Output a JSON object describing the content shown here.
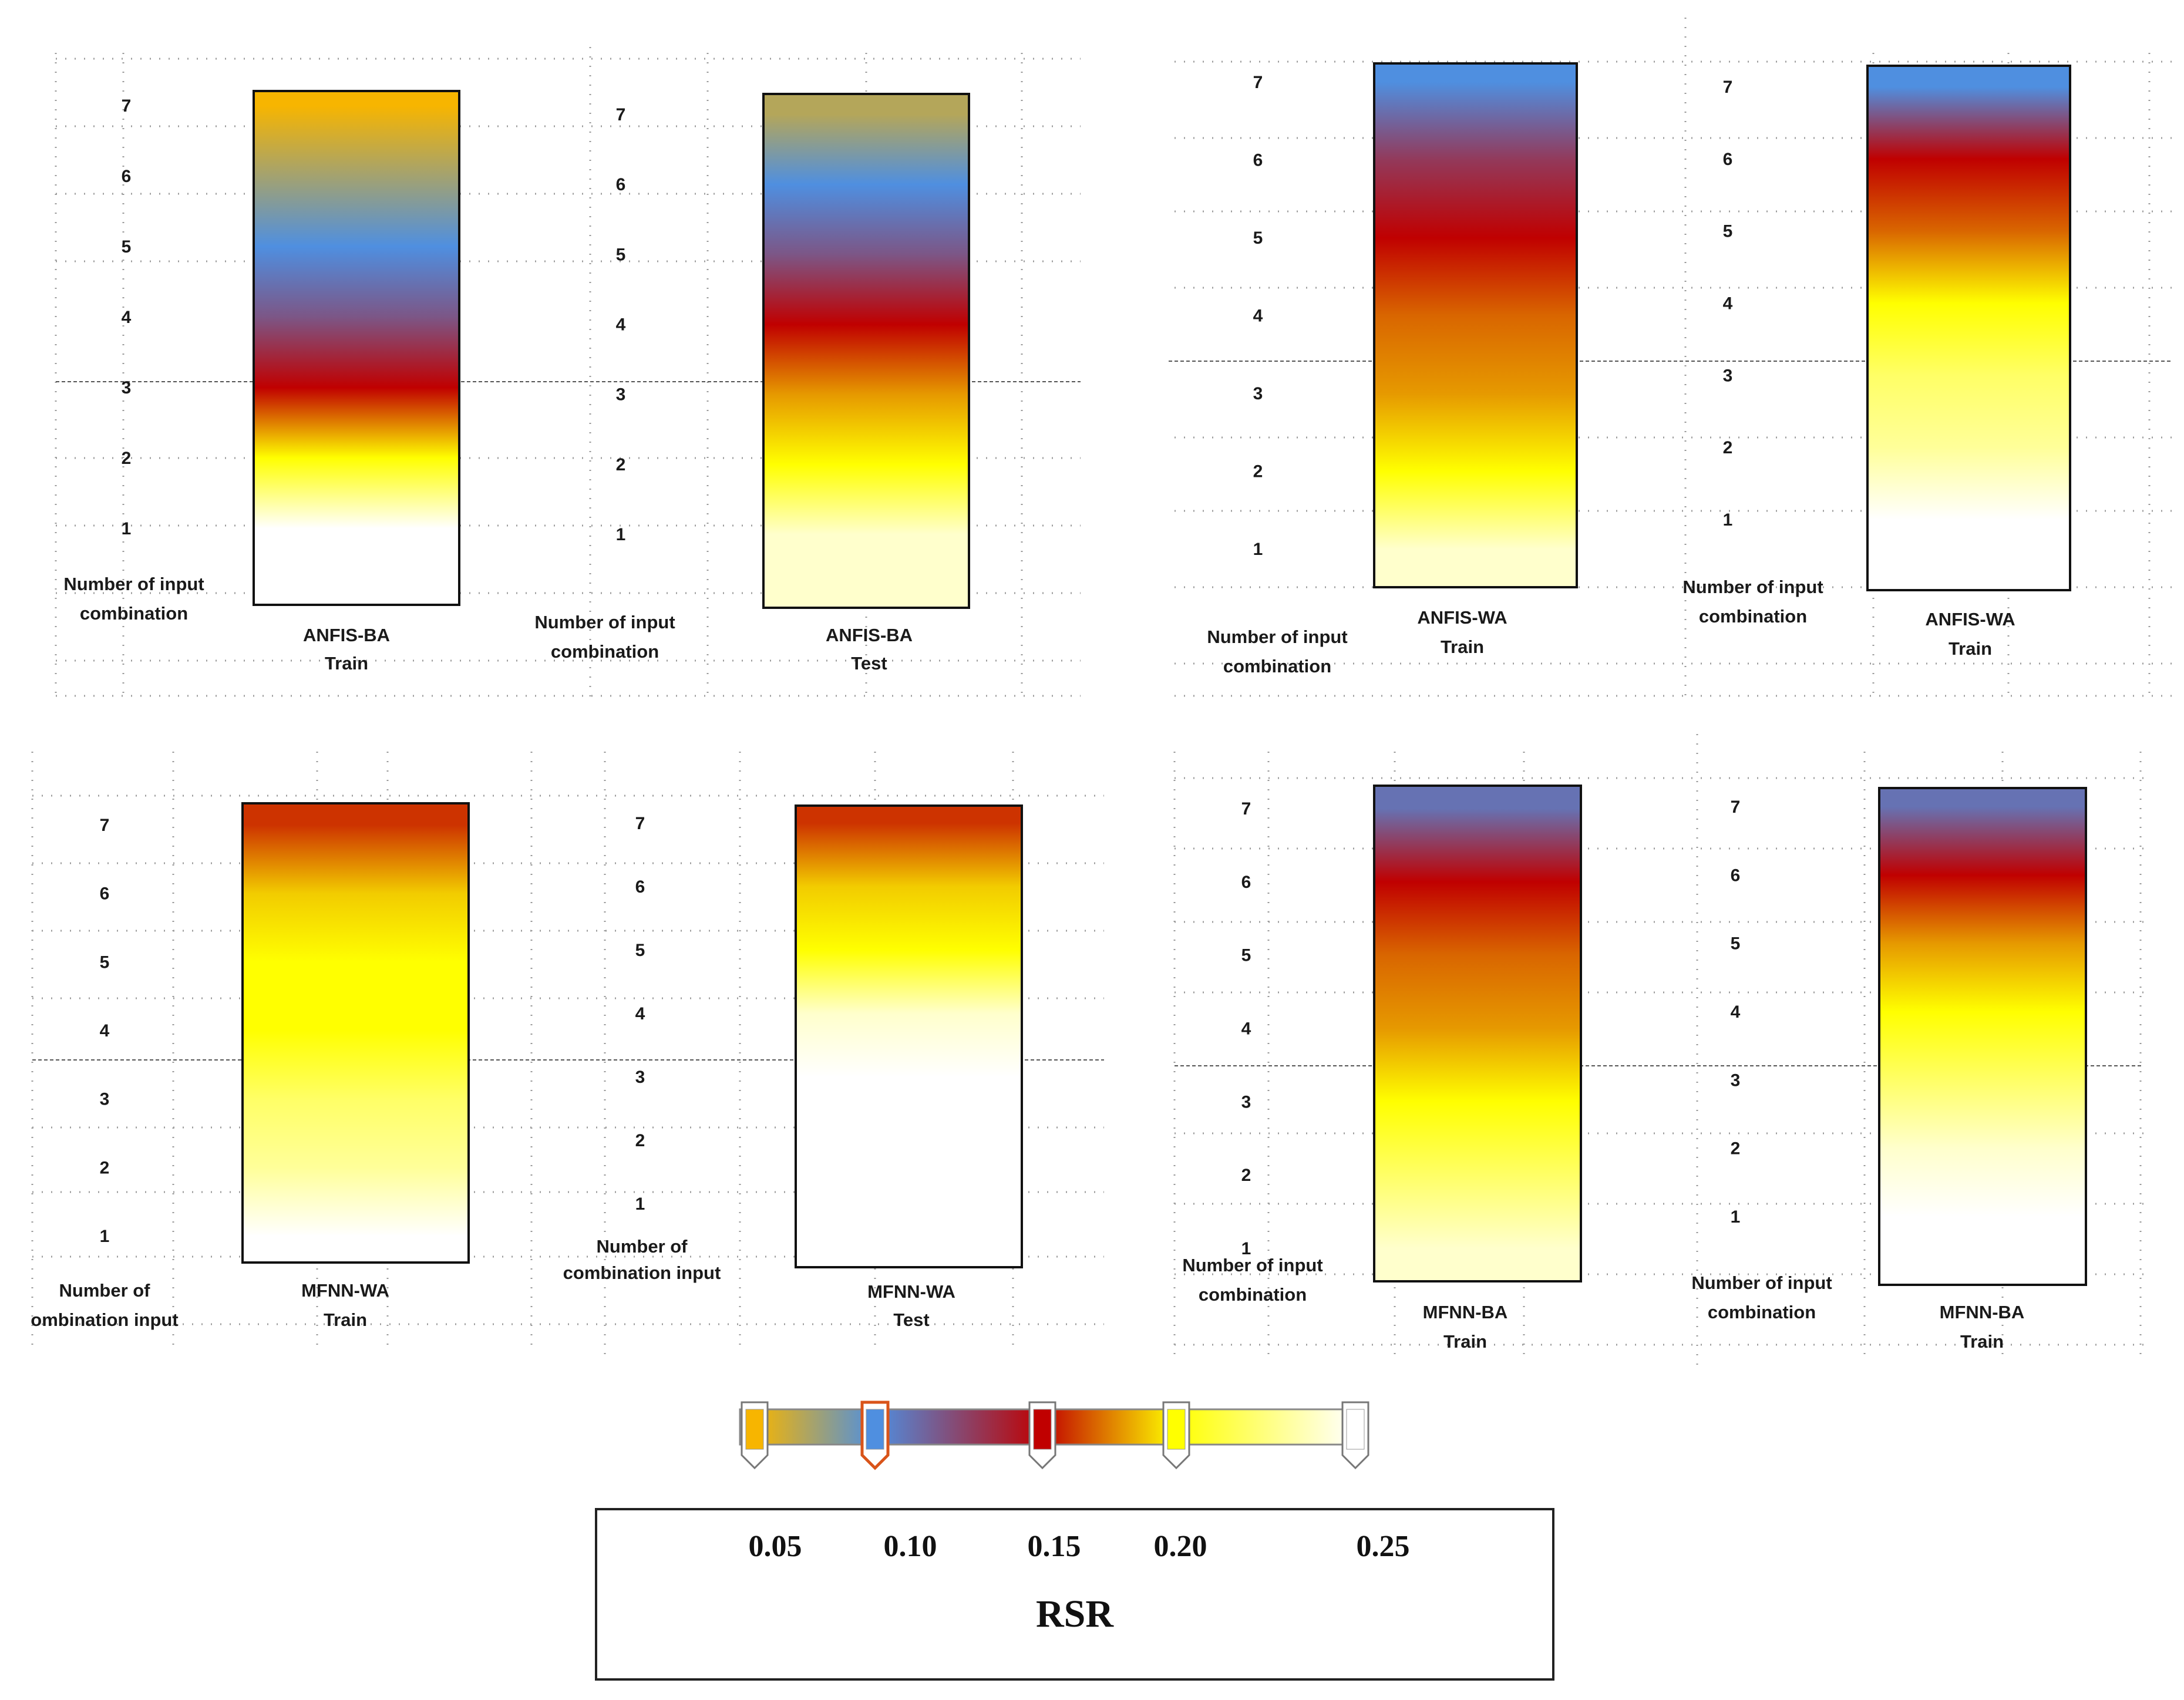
{
  "chart_data": {
    "type": "heatmap",
    "colormap": {
      "title": "RSR",
      "tick_labels": [
        "0.05",
        "0.10",
        "0.15",
        "0.20",
        "0.25"
      ],
      "stops": [
        {
          "value": 0.05,
          "color": "#f7b500"
        },
        {
          "value": 0.1,
          "color": "#4f8fe0"
        },
        {
          "value": 0.15,
          "color": "#c00000"
        },
        {
          "value": 0.2,
          "color": "#ffff00"
        },
        {
          "value": 0.25,
          "color": "#ffffff"
        }
      ]
    },
    "panels": [
      {
        "id": "anfis-ba-train",
        "model": "ANFIS-BA",
        "phase": "Train",
        "ylabel": [
          "Number of input",
          "combination"
        ],
        "combinations": [
          1,
          2,
          3,
          4,
          5,
          6,
          7
        ],
        "rsr": [
          0.25,
          0.2,
          0.15,
          0.12,
          0.1,
          0.075,
          0.05
        ]
      },
      {
        "id": "anfis-ba-test",
        "model": "ANFIS-BA",
        "phase": "Test",
        "ylabel": [
          "Number of input",
          "combination"
        ],
        "combinations": [
          1,
          2,
          3,
          4,
          5,
          6,
          7
        ],
        "rsr": [
          0.24,
          0.2,
          0.18,
          0.15,
          0.12,
          0.1,
          0.07
        ]
      },
      {
        "id": "anfis-wa-train",
        "model": "ANFIS-WA",
        "phase": "Train",
        "ylabel": [
          "Number of input",
          "combination"
        ],
        "combinations": [
          1,
          2,
          3,
          4,
          5,
          6,
          7
        ],
        "rsr": [
          0.24,
          0.2,
          0.18,
          0.17,
          0.15,
          0.13,
          0.1
        ]
      },
      {
        "id": "anfis-wa-test",
        "model": "ANFIS-WA",
        "phase": "Train",
        "ylabel": [
          "Number of input",
          "combination"
        ],
        "combinations": [
          1,
          2,
          3,
          4,
          5,
          6,
          7
        ],
        "rsr": [
          0.25,
          0.23,
          0.22,
          0.2,
          0.17,
          0.15,
          0.1
        ]
      },
      {
        "id": "mfnn-wa-train",
        "model": "MFNN-WA",
        "phase": "Train",
        "ylabel": [
          "Number of",
          "ombination input"
        ],
        "combinations": [
          1,
          2,
          3,
          4,
          5,
          6,
          7
        ],
        "rsr": [
          0.25,
          0.23,
          0.22,
          0.2,
          0.2,
          0.19,
          0.16
        ]
      },
      {
        "id": "mfnn-wa-test",
        "model": "MFNN-WA",
        "phase": "Test",
        "ylabel": [
          "Number of",
          "combination input"
        ],
        "combinations": [
          1,
          2,
          3,
          4,
          5,
          6,
          7
        ],
        "rsr": [
          0.25,
          0.25,
          0.25,
          0.24,
          0.2,
          0.19,
          0.16
        ]
      },
      {
        "id": "mfnn-ba-train",
        "model": "MFNN-BA",
        "phase": "Train",
        "ylabel": [
          "Number of input",
          "combination"
        ],
        "combinations": [
          1,
          2,
          3,
          4,
          5,
          6,
          7
        ],
        "rsr": [
          0.24,
          0.22,
          0.2,
          0.18,
          0.17,
          0.15,
          0.11
        ]
      },
      {
        "id": "mfnn-ba-test",
        "model": "MFNN-BA",
        "phase": "Train",
        "ylabel": [
          "Number of input",
          "combination"
        ],
        "combinations": [
          1,
          2,
          3,
          4,
          5,
          6,
          7
        ],
        "rsr": [
          0.25,
          0.24,
          0.22,
          0.2,
          0.18,
          0.15,
          0.11
        ]
      }
    ]
  }
}
